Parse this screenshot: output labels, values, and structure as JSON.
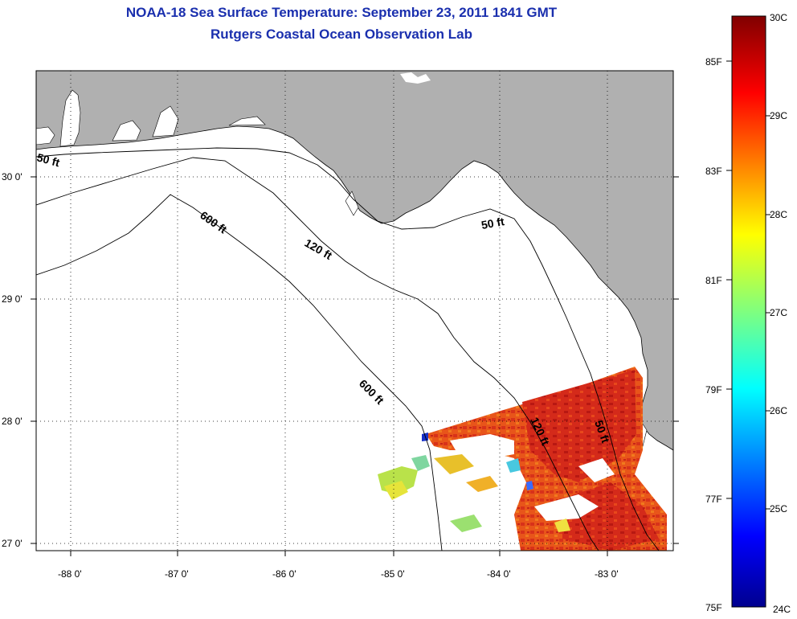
{
  "title": "NOAA-18 Sea Surface Temperature:  September 23, 2011 1841 GMT",
  "subtitle": "Rutgers Coastal Ocean Observation Lab",
  "map": {
    "lon_labels": [
      "-88 0'",
      "-87 0'",
      "-86 0'",
      "-85 0'",
      "-84 0'",
      "-83 0'"
    ],
    "lat_labels": [
      "30 0'",
      "29 0'",
      "28 0'",
      "27 0'"
    ],
    "contour_labels": [
      "50 ft",
      "600 ft",
      "120 ft",
      "50 ft",
      "600 ft",
      "120 ft",
      "50 ft"
    ],
    "land_color": "#b0b0b0",
    "ocean_color": "#ffffff"
  },
  "colorbar": {
    "fahrenheit_labels": [
      "85F",
      "83F",
      "81F",
      "79F",
      "77F",
      "75F"
    ],
    "celsius_labels": [
      "30C",
      "29C",
      "28C",
      "27C",
      "26C",
      "25C",
      "24C"
    ],
    "range_c": [
      24,
      30
    ],
    "range_f": [
      75,
      86
    ]
  }
}
